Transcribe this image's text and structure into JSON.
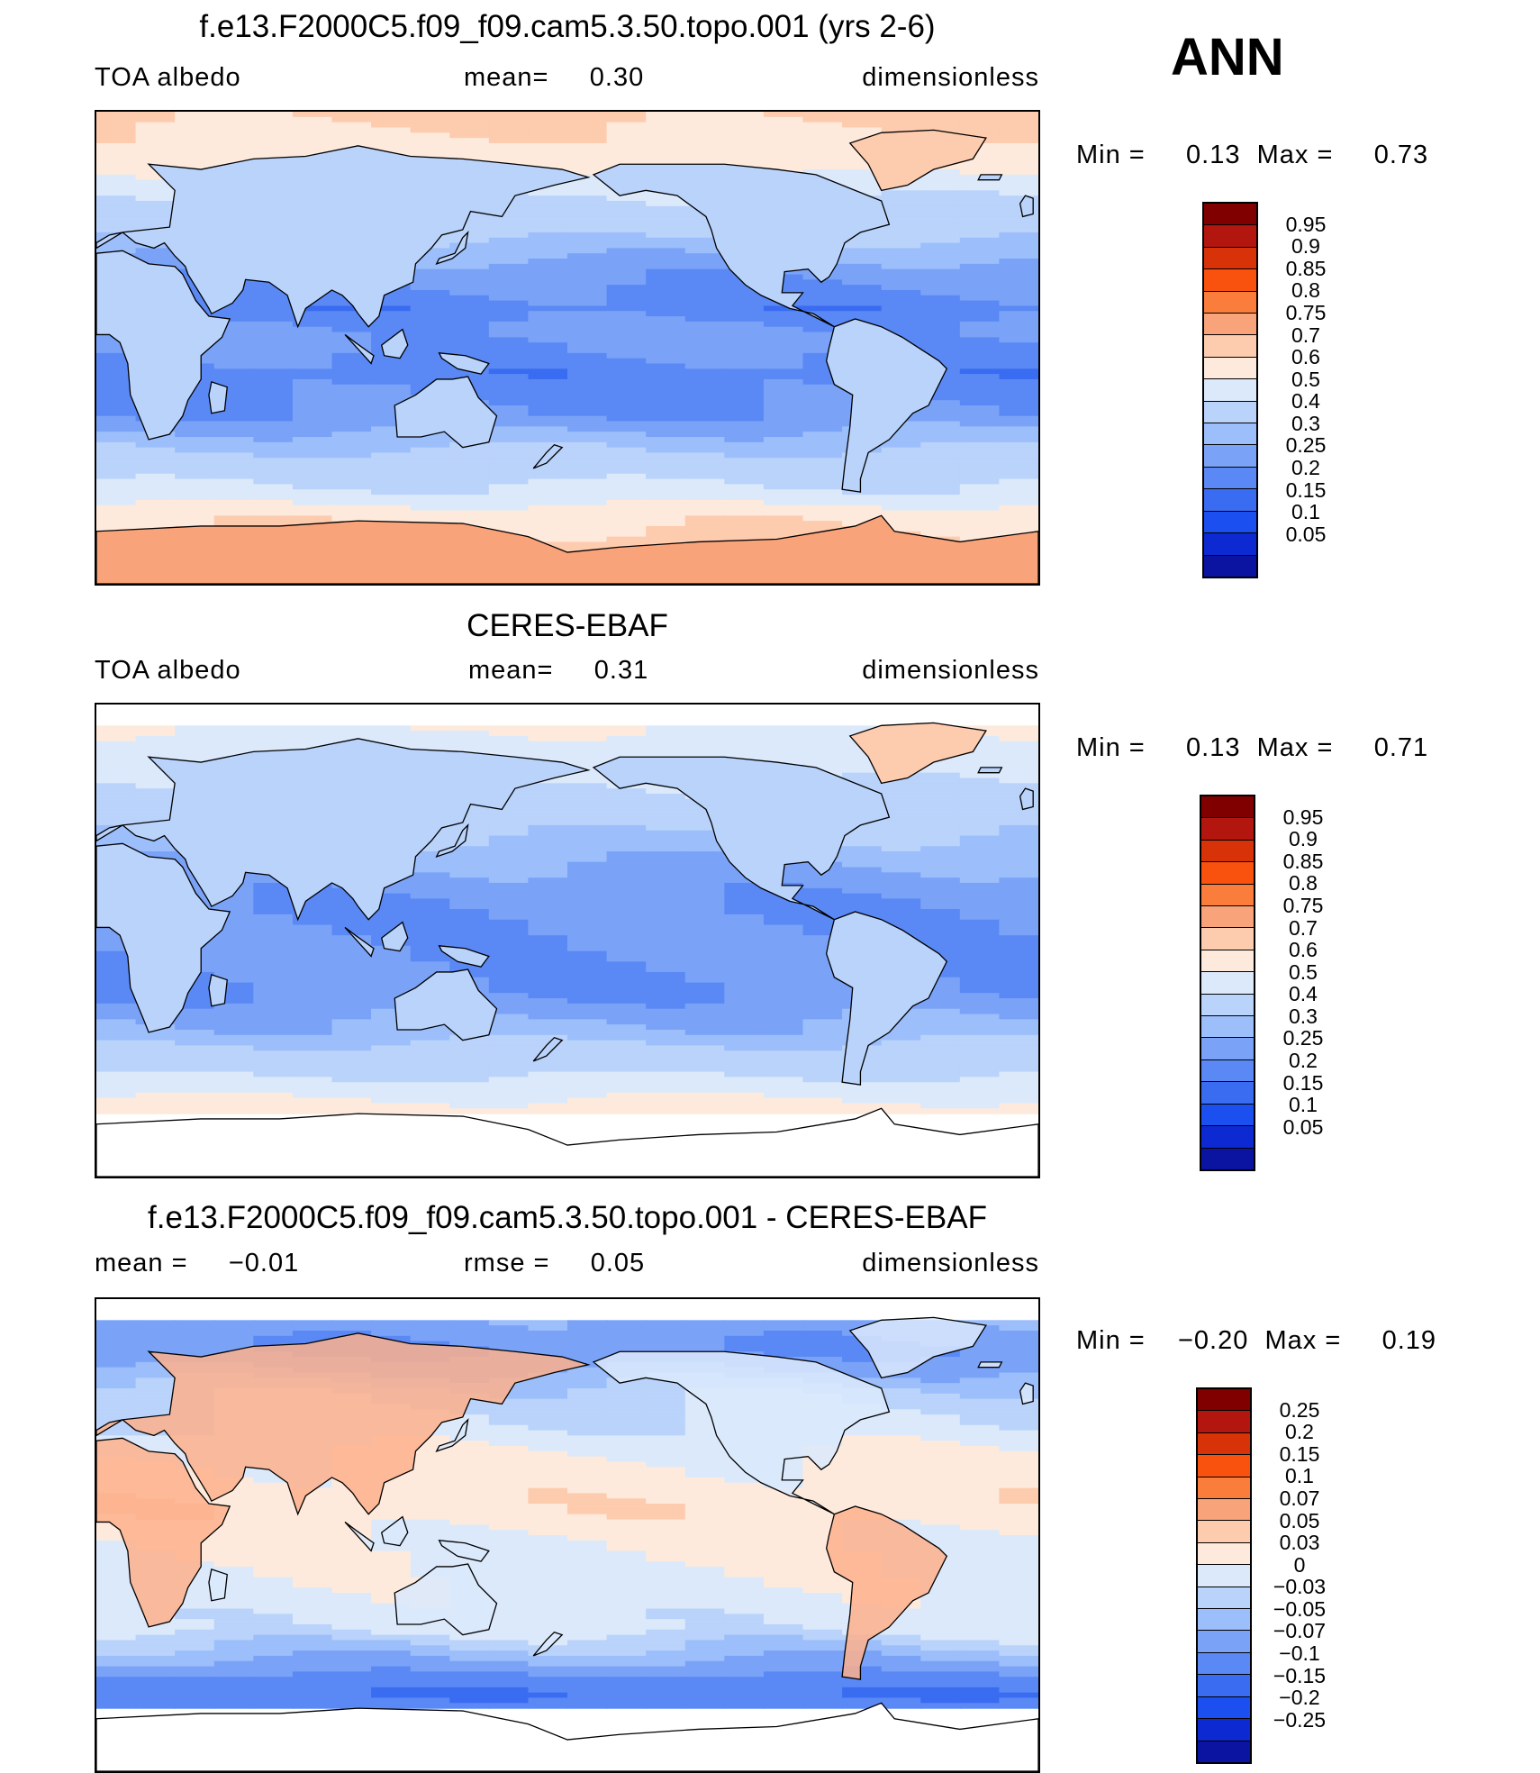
{
  "season": "ANN",
  "land_outline_icon": "continent-outline-icon",
  "panels": [
    {
      "title": "f.e13.F2000C5.f09_f09.cam5.3.50.topo.001 (yrs 2-6)",
      "left_label": "TOA albedo",
      "center_label": "mean=",
      "center_value": "0.30",
      "right_label": "dimensionless",
      "min_label": "Min =",
      "min_value": "0.13",
      "max_label": "Max =",
      "max_value": "0.73",
      "levels": [
        "0.95",
        "0.9",
        "0.85",
        "0.8",
        "0.75",
        "0.7",
        "0.6",
        "0.5",
        "0.4",
        "0.3",
        "0.25",
        "0.2",
        "0.15",
        "0.1",
        "0.05"
      ],
      "colors": [
        "#800000",
        "#b2160f",
        "#d83209",
        "#f8520e",
        "#fb7d3c",
        "#f9a37a",
        "#fdcbae",
        "#fdeadc",
        "#dbe9fb",
        "#bad3fb",
        "#9cbefb",
        "#7aa3f8",
        "#5a89f5",
        "#3a6cf2",
        "#1c4ff0",
        "#0d2ad2",
        "#0a14a0"
      ],
      "fields": {
        "land_lat_offset": 0.0,
        "zones": [
          {
            "lat": 90,
            "v": 0.62
          },
          {
            "lat": 70,
            "v": 0.55
          },
          {
            "lat": 60,
            "v": 0.42
          },
          {
            "lat": 45,
            "v": 0.33
          },
          {
            "lat": 30,
            "v": 0.22
          },
          {
            "lat": 15,
            "v": 0.17
          },
          {
            "lat": 5,
            "v": 0.22
          },
          {
            "lat": -10,
            "v": 0.17
          },
          {
            "lat": -25,
            "v": 0.2
          },
          {
            "lat": -40,
            "v": 0.31
          },
          {
            "lat": -55,
            "v": 0.42
          },
          {
            "lat": -65,
            "v": 0.58
          },
          {
            "lat": -90,
            "v": 0.7
          }
        ]
      }
    },
    {
      "title": "CERES-EBAF",
      "left_label": "TOA albedo",
      "center_label": "mean=",
      "center_value": "0.31",
      "right_label": "dimensionless",
      "min_label": "Min =",
      "min_value": "0.13",
      "max_label": "Max =",
      "max_value": "0.71",
      "levels": [
        "0.95",
        "0.9",
        "0.85",
        "0.8",
        "0.75",
        "0.7",
        "0.6",
        "0.5",
        "0.4",
        "0.3",
        "0.25",
        "0.2",
        "0.15",
        "0.1",
        "0.05"
      ],
      "colors": [
        "#800000",
        "#b2160f",
        "#d83209",
        "#f8520e",
        "#fb7d3c",
        "#f9a37a",
        "#fdcbae",
        "#fdeadc",
        "#dbe9fb",
        "#bad3fb",
        "#9cbefb",
        "#7aa3f8",
        "#5a89f5",
        "#3a6cf2",
        "#1c4ff0",
        "#0d2ad2",
        "#0a14a0"
      ],
      "fields": {
        "zones": [
          {
            "lat": 82,
            "v": 0.5
          },
          {
            "lat": 70,
            "v": 0.45
          },
          {
            "lat": 55,
            "v": 0.38
          },
          {
            "lat": 40,
            "v": 0.3
          },
          {
            "lat": 25,
            "v": 0.23
          },
          {
            "lat": 10,
            "v": 0.2
          },
          {
            "lat": -5,
            "v": 0.21
          },
          {
            "lat": -20,
            "v": 0.2
          },
          {
            "lat": -35,
            "v": 0.27
          },
          {
            "lat": -50,
            "v": 0.38
          },
          {
            "lat": -60,
            "v": 0.5
          },
          {
            "lat": -67,
            "v": 0.55
          }
        ],
        "missing_north": 82,
        "missing_south": -67
      }
    },
    {
      "title": "f.e13.F2000C5.f09_f09.cam5.3.50.topo.001 - CERES-EBAF",
      "left_label": "mean =",
      "left_value": "−0.01",
      "center_label": "rmse =",
      "center_value": "0.05",
      "right_label": "dimensionless",
      "min_label": "Min =",
      "min_value": "−0.20",
      "max_label": "Max =",
      "max_value": "0.19",
      "levels": [
        "0.25",
        "0.2",
        "0.15",
        "0.1",
        "0.07",
        "0.05",
        "0.03",
        "0",
        "−0.03",
        "−0.05",
        "−0.07",
        "−0.1",
        "−0.15",
        "−0.2",
        "−0.25"
      ],
      "colors": [
        "#800000",
        "#b2160f",
        "#d83209",
        "#f8520e",
        "#fb7d3c",
        "#f9a37a",
        "#fdcbae",
        "#fdeadc",
        "#dbe9fb",
        "#bad3fb",
        "#9cbefb",
        "#7aa3f8",
        "#5a89f5",
        "#3a6cf2",
        "#1c4ff0",
        "#0d2ad2",
        "#0a14a0"
      ],
      "fields": {
        "zones": [
          {
            "lat": 82,
            "v": -0.08
          },
          {
            "lat": 70,
            "v": -0.1
          },
          {
            "lat": 55,
            "v": -0.04
          },
          {
            "lat": 40,
            "v": -0.02
          },
          {
            "lat": 25,
            "v": 0.01
          },
          {
            "lat": 10,
            "v": 0.02
          },
          {
            "lat": -5,
            "v": 0.0
          },
          {
            "lat": -20,
            "v": -0.01
          },
          {
            "lat": -35,
            "v": -0.02
          },
          {
            "lat": -50,
            "v": -0.08
          },
          {
            "lat": -60,
            "v": -0.15
          },
          {
            "lat": -67,
            "v": -0.12
          }
        ],
        "missing_north": 82,
        "missing_south": -67
      }
    }
  ]
}
